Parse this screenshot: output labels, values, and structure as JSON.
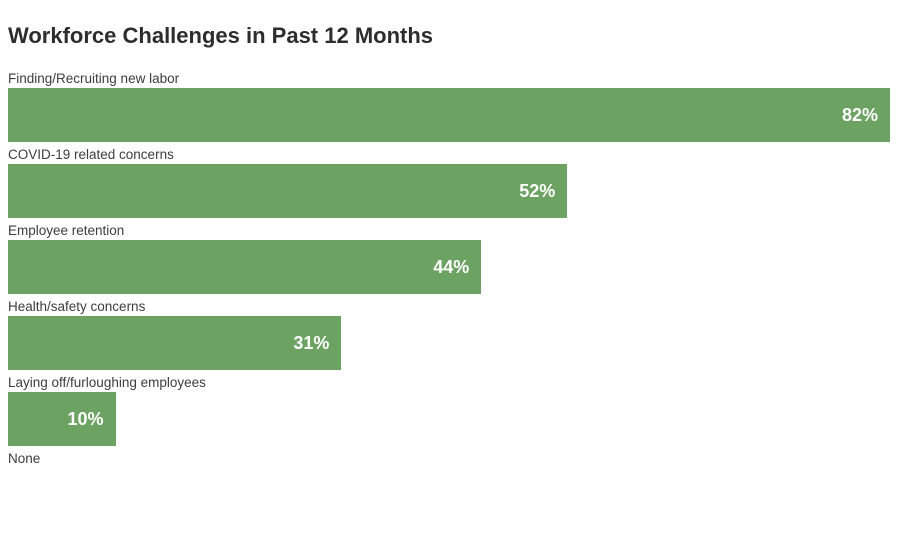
{
  "chart_data": {
    "type": "bar",
    "orientation": "horizontal",
    "title": "Workforce Challenges in Past 12 Months",
    "categories": [
      "Finding/Recruiting new labor",
      "COVID-19 related concerns",
      "Employee retention",
      "Health/safety concerns",
      "Laying off/furloughing employees",
      "None"
    ],
    "values": [
      82,
      52,
      44,
      31,
      10,
      0
    ],
    "value_labels": [
      "82%",
      "52%",
      "44%",
      "31%",
      "10%",
      ""
    ],
    "xlabel": "",
    "ylabel": "",
    "xlim": [
      0,
      82
    ],
    "grid": false,
    "legend": false,
    "colors": {
      "bar": "#6ca262",
      "value_label": "#ffffff",
      "category_label": "#3d3d3d",
      "title": "#2d2d2d",
      "background": "#ffffff"
    }
  }
}
